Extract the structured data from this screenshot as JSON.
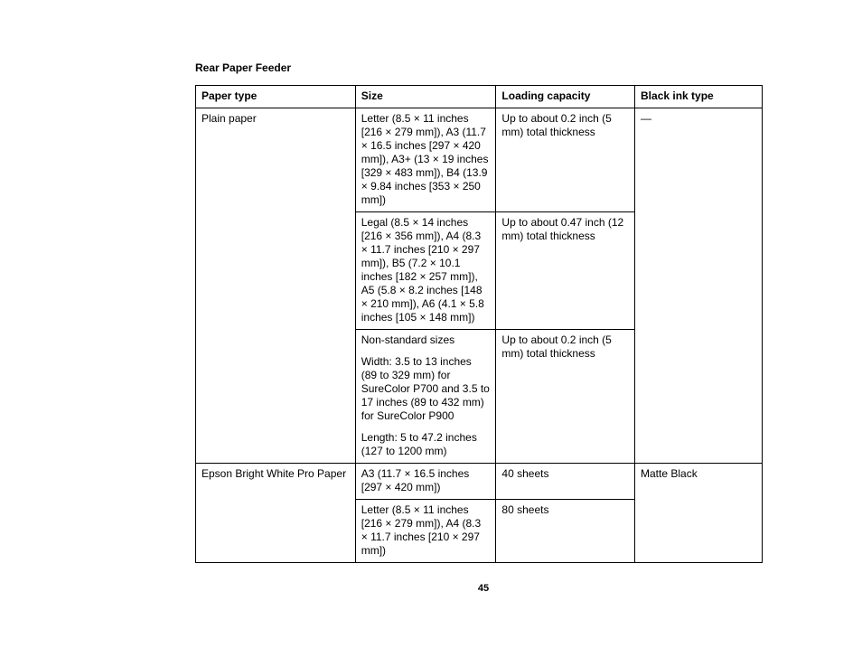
{
  "title": "Rear Paper Feeder",
  "page_number": "45",
  "columns": [
    "Paper type",
    "Size",
    "Loading capacity",
    "Black ink type"
  ],
  "rows": {
    "plain_paper": {
      "type": "Plain paper",
      "ink": "—",
      "r1": {
        "size": "Letter (8.5 × 11 inches [216 × 279 mm]), A3 (11.7 × 16.5 inches [297 × 420 mm]), A3+ (13 × 19 inches [329 × 483 mm]), B4 (13.9 × 9.84 inches [353 × 250 mm])",
        "cap": "Up to about 0.2 inch (5 mm) total thickness"
      },
      "r2": {
        "size": "Legal (8.5 × 14 inches [216 × 356 mm]), A4 (8.3 × 11.7 inches [210 × 297 mm]), B5 (7.2 × 10.1 inches [182 × 257 mm]), A5 (5.8 × 8.2 inches [148 × 210 mm]), A6 (4.1 × 5.8 inches [105 × 148 mm])",
        "cap": "Up to about 0.47 inch (12 mm) total thickness"
      },
      "r3": {
        "size_a": "Non-standard sizes",
        "size_b": "Width: 3.5 to 13 inches (89 to 329 mm) for SureColor P700 and 3.5 to 17 inches (89 to 432 mm) for SureColor P900",
        "size_c": "Length: 5 to 47.2 inches (127 to 1200 mm)",
        "cap": "Up to about 0.2 inch (5 mm) total thickness"
      }
    },
    "bright_white": {
      "type": "Epson Bright White Pro Paper",
      "ink": "Matte Black",
      "r1": {
        "size": "A3 (11.7 × 16.5 inches [297 × 420 mm])",
        "cap": "40 sheets"
      },
      "r2": {
        "size": "Letter (8.5 × 11 inches [216 × 279 mm]), A4 (8.3 × 11.7 inches [210 × 297 mm])",
        "cap": "80 sheets"
      }
    }
  }
}
